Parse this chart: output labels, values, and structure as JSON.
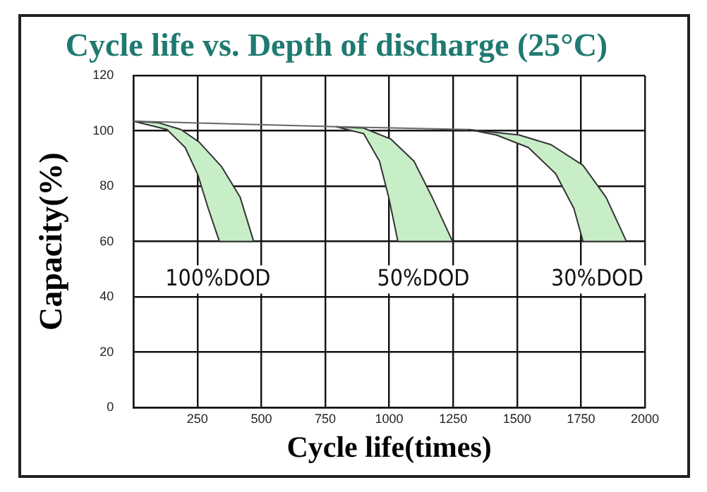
{
  "chart_data": {
    "type": "line",
    "title": "Cycle life vs. Depth of discharge (25°C)",
    "xlabel": "Cycle life(times)",
    "ylabel": "Capacity(%)",
    "xlim": [
      0,
      2000
    ],
    "xticks": [
      {
        "value": 0,
        "label": null
      },
      250,
      500,
      750,
      1000,
      1250,
      1500,
      1750,
      2000
    ],
    "ylim": [
      0,
      120
    ],
    "yticks": [
      0,
      20,
      40,
      60,
      80,
      100,
      120
    ],
    "grid": true,
    "legend": false,
    "marker": "none",
    "line_style": "solid",
    "series": [
      {
        "color": "#666666",
        "x": [
          0,
          792,
          1311
        ],
        "values": [
          103.5,
          101.5,
          100.5
        ]
      },
      {
        "type": "area",
        "color": "#c8eec8",
        "x": [
          0,
          131,
          202,
          252,
          292,
          336,
          470,
          417,
          345,
          256,
          185,
          95
        ],
        "values": [
          103.5,
          100.5,
          94,
          84,
          72,
          60,
          60,
          76,
          87,
          96,
          100.5,
          103
        ]
      },
      {
        "type": "area",
        "color": "#c8eec8",
        "x": [
          792,
          900,
          962,
          998,
          1034,
          1248,
          1168,
          1097,
          1007,
          900
        ],
        "values": [
          101.5,
          99,
          89,
          76,
          60,
          60,
          76,
          89,
          97,
          101
        ]
      },
      {
        "type": "area",
        "color": "#c8eec8",
        "x": [
          1311,
          1419,
          1544,
          1651,
          1722,
          1758,
          1928,
          1848,
          1758,
          1633,
          1508
        ],
        "values": [
          100.5,
          98.5,
          94,
          84.5,
          72,
          60,
          60,
          76,
          87.5,
          95,
          98.5
        ]
      }
    ],
    "annotations": [
      "100%DOD",
      "50%DOD",
      "30%DOD"
    ]
  }
}
